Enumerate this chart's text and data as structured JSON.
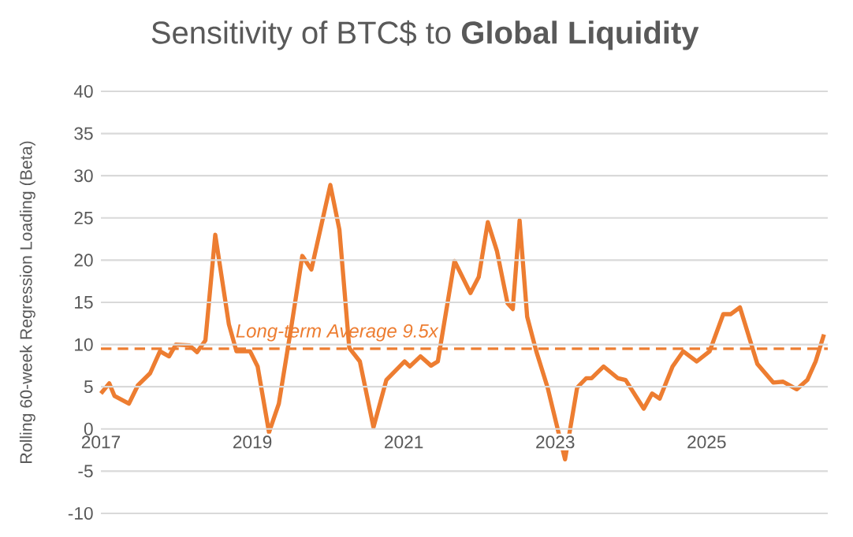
{
  "chart_data": {
    "type": "line",
    "title": "Sensitivity of BTC$ to **Global Liquidity**",
    "ylabel": "Rolling 60-week Regression Loading (Beta)",
    "x": [
      2017.0,
      2017.11,
      2017.18,
      2017.37,
      2017.49,
      2017.65,
      2017.78,
      2017.9,
      2017.99,
      2018.17,
      2018.27,
      2018.38,
      2018.51,
      2018.69,
      2018.79,
      2018.97,
      2019.07,
      2019.22,
      2019.35,
      2019.52,
      2019.66,
      2019.78,
      2020.03,
      2020.15,
      2020.28,
      2020.42,
      2020.6,
      2020.77,
      2021.01,
      2021.08,
      2021.22,
      2021.36,
      2021.45,
      2021.67,
      2021.88,
      2021.99,
      2022.11,
      2022.23,
      2022.37,
      2022.44,
      2022.53,
      2022.63,
      2022.75,
      2022.9,
      2023.13,
      2023.29,
      2023.41,
      2023.48,
      2023.64,
      2023.83,
      2023.93,
      2024.17,
      2024.28,
      2024.38,
      2024.55,
      2024.69,
      2024.87,
      2025.04,
      2025.22,
      2025.32,
      2025.44,
      2025.67,
      2025.88,
      2026.01,
      2026.19,
      2026.33,
      2026.44,
      2026.55
    ],
    "series": [
      {
        "color": "#ed7d31",
        "values": [
          4.2,
          5.4,
          3.9,
          3.0,
          5.2,
          6.6,
          9.2,
          8.6,
          10.0,
          9.9,
          9.1,
          10.5,
          23.0,
          12.4,
          9.2,
          9.2,
          7.4,
          -0.4,
          3.0,
          12.4,
          20.5,
          18.9,
          28.9,
          23.6,
          9.6,
          8.0,
          0.2,
          5.8,
          8.0,
          7.4,
          8.6,
          7.5,
          8.0,
          19.9,
          16.1,
          18.0,
          24.5,
          21.1,
          14.9,
          14.2,
          24.7,
          13.3,
          9.2,
          4.9,
          -3.6,
          4.9,
          6.0,
          6.0,
          7.4,
          6.0,
          5.8,
          2.4,
          4.2,
          3.6,
          7.4,
          9.2,
          8.0,
          9.2,
          13.6,
          13.6,
          14.4,
          7.7,
          5.5,
          5.6,
          4.7,
          5.8,
          8.0,
          11.2
        ]
      }
    ],
    "xlim": [
      2017,
      2026.6
    ],
    "xticks": [
      2017,
      2019,
      2021,
      2023,
      2025
    ],
    "ylim": [
      -10,
      40
    ],
    "yticks": [
      -10,
      -5,
      0,
      5,
      10,
      15,
      20,
      25,
      30,
      35,
      40
    ],
    "grid": "y",
    "marker": "none",
    "line_style": "solid",
    "ref_lines": [
      {
        "axis": "y",
        "value": 9.5,
        "label": "Long-term Average 9.5x",
        "color": "#ed7d31",
        "line_style": "dashed"
      }
    ]
  }
}
